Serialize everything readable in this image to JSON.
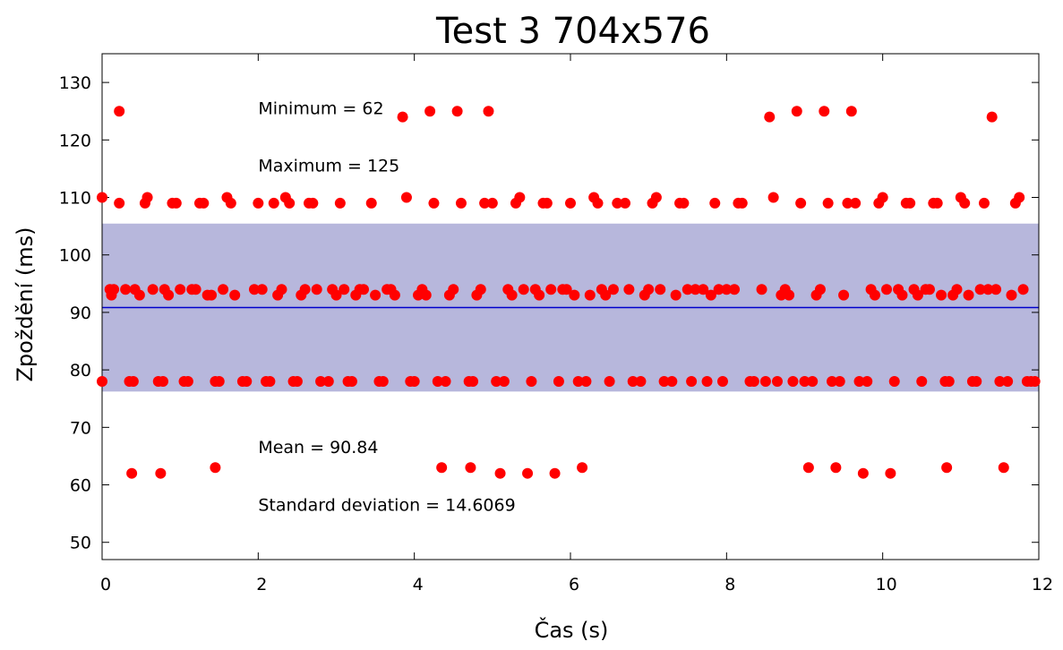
{
  "chart_data": {
    "type": "scatter",
    "title": "Test 3 704x576",
    "xlabel": "Čas (s)",
    "ylabel": "Zpoždění (ms)",
    "xlim": [
      0,
      12
    ],
    "ylim": [
      47,
      135
    ],
    "xticks": [
      0,
      2,
      4,
      6,
      8,
      10,
      12
    ],
    "yticks": [
      50,
      60,
      70,
      80,
      90,
      100,
      110,
      120,
      130
    ],
    "grid": false,
    "colors": {
      "points": "#ff0000",
      "mean_line": "#0000cc",
      "std_band": "#b7b7dc"
    },
    "mean": 90.84,
    "std": 14.6069,
    "annotations": [
      {
        "text": "Minimum = 62",
        "x": 2.0,
        "y": 124.5
      },
      {
        "text": "Maximum = 125",
        "x": 2.0,
        "y": 114.5
      },
      {
        "text": "Mean = 90.84",
        "x": 2.0,
        "y": 65.5
      },
      {
        "text": "Standard deviation = 14.6069",
        "x": 2.0,
        "y": 55.5
      }
    ],
    "series": [
      {
        "points": [
          [
            0.0,
            110
          ],
          [
            0.0,
            78
          ],
          [
            0.1,
            94
          ],
          [
            0.12,
            93
          ],
          [
            0.15,
            94
          ],
          [
            0.22,
            109
          ],
          [
            0.22,
            125
          ],
          [
            0.3,
            94
          ],
          [
            0.35,
            78
          ],
          [
            0.38,
            62
          ],
          [
            0.4,
            78
          ],
          [
            0.42,
            94
          ],
          [
            0.48,
            93
          ],
          [
            0.55,
            109
          ],
          [
            0.58,
            110
          ],
          [
            0.65,
            94
          ],
          [
            0.72,
            78
          ],
          [
            0.75,
            62
          ],
          [
            0.78,
            78
          ],
          [
            0.8,
            94
          ],
          [
            0.85,
            93
          ],
          [
            0.9,
            109
          ],
          [
            0.95,
            109
          ],
          [
            1.0,
            94
          ],
          [
            1.05,
            78
          ],
          [
            1.1,
            78
          ],
          [
            1.15,
            94
          ],
          [
            1.2,
            94
          ],
          [
            1.25,
            109
          ],
          [
            1.3,
            109
          ],
          [
            1.35,
            93
          ],
          [
            1.4,
            93
          ],
          [
            1.45,
            63
          ],
          [
            1.45,
            78
          ],
          [
            1.5,
            78
          ],
          [
            1.55,
            94
          ],
          [
            1.6,
            110
          ],
          [
            1.65,
            109
          ],
          [
            1.7,
            93
          ],
          [
            1.8,
            78
          ],
          [
            1.85,
            78
          ],
          [
            1.95,
            94
          ],
          [
            2.0,
            109
          ],
          [
            2.05,
            94
          ],
          [
            2.1,
            78
          ],
          [
            2.15,
            78
          ],
          [
            2.2,
            109
          ],
          [
            2.25,
            93
          ],
          [
            2.3,
            94
          ],
          [
            2.35,
            110
          ],
          [
            2.4,
            109
          ],
          [
            2.45,
            78
          ],
          [
            2.5,
            78
          ],
          [
            2.55,
            93
          ],
          [
            2.6,
            94
          ],
          [
            2.65,
            109
          ],
          [
            2.7,
            109
          ],
          [
            2.75,
            94
          ],
          [
            2.8,
            78
          ],
          [
            2.9,
            78
          ],
          [
            2.95,
            94
          ],
          [
            3.0,
            93
          ],
          [
            3.05,
            109
          ],
          [
            3.1,
            94
          ],
          [
            3.15,
            78
          ],
          [
            3.2,
            78
          ],
          [
            3.25,
            93
          ],
          [
            3.3,
            94
          ],
          [
            3.35,
            94
          ],
          [
            3.45,
            109
          ],
          [
            3.5,
            93
          ],
          [
            3.55,
            78
          ],
          [
            3.6,
            78
          ],
          [
            3.65,
            94
          ],
          [
            3.7,
            94
          ],
          [
            3.75,
            93
          ],
          [
            3.85,
            124
          ],
          [
            3.9,
            110
          ],
          [
            3.95,
            78
          ],
          [
            4.0,
            78
          ],
          [
            4.05,
            93
          ],
          [
            4.1,
            94
          ],
          [
            4.15,
            93
          ],
          [
            4.2,
            125
          ],
          [
            4.25,
            109
          ],
          [
            4.3,
            78
          ],
          [
            4.35,
            63
          ],
          [
            4.4,
            78
          ],
          [
            4.45,
            93
          ],
          [
            4.5,
            94
          ],
          [
            4.55,
            125
          ],
          [
            4.6,
            109
          ],
          [
            4.7,
            78
          ],
          [
            4.72,
            63
          ],
          [
            4.75,
            78
          ],
          [
            4.8,
            93
          ],
          [
            4.85,
            94
          ],
          [
            4.9,
            109
          ],
          [
            4.95,
            125
          ],
          [
            5.0,
            109
          ],
          [
            5.05,
            78
          ],
          [
            5.1,
            62
          ],
          [
            5.15,
            78
          ],
          [
            5.2,
            94
          ],
          [
            5.25,
            93
          ],
          [
            5.3,
            109
          ],
          [
            5.35,
            110
          ],
          [
            5.4,
            94
          ],
          [
            5.45,
            62
          ],
          [
            5.5,
            78
          ],
          [
            5.55,
            94
          ],
          [
            5.6,
            93
          ],
          [
            5.65,
            109
          ],
          [
            5.7,
            109
          ],
          [
            5.75,
            94
          ],
          [
            5.8,
            62
          ],
          [
            5.85,
            78
          ],
          [
            5.9,
            94
          ],
          [
            5.95,
            94
          ],
          [
            6.0,
            109
          ],
          [
            6.05,
            93
          ],
          [
            6.1,
            78
          ],
          [
            6.15,
            63
          ],
          [
            6.2,
            78
          ],
          [
            6.25,
            93
          ],
          [
            6.3,
            110
          ],
          [
            6.35,
            109
          ],
          [
            6.4,
            94
          ],
          [
            6.45,
            93
          ],
          [
            6.5,
            78
          ],
          [
            6.55,
            94
          ],
          [
            6.6,
            109
          ],
          [
            6.7,
            109
          ],
          [
            6.75,
            94
          ],
          [
            6.8,
            78
          ],
          [
            6.9,
            78
          ],
          [
            6.95,
            93
          ],
          [
            7.0,
            94
          ],
          [
            7.05,
            109
          ],
          [
            7.1,
            110
          ],
          [
            7.15,
            94
          ],
          [
            7.2,
            78
          ],
          [
            7.3,
            78
          ],
          [
            7.35,
            93
          ],
          [
            7.4,
            109
          ],
          [
            7.45,
            109
          ],
          [
            7.5,
            94
          ],
          [
            7.55,
            78
          ],
          [
            7.6,
            94
          ],
          [
            7.7,
            94
          ],
          [
            7.75,
            78
          ],
          [
            7.8,
            93
          ],
          [
            7.85,
            109
          ],
          [
            7.9,
            94
          ],
          [
            7.95,
            78
          ],
          [
            8.0,
            94
          ],
          [
            8.1,
            94
          ],
          [
            8.15,
            109
          ],
          [
            8.2,
            109
          ],
          [
            8.3,
            78
          ],
          [
            8.35,
            78
          ],
          [
            8.45,
            94
          ],
          [
            8.5,
            78
          ],
          [
            8.55,
            124
          ],
          [
            8.6,
            110
          ],
          [
            8.65,
            78
          ],
          [
            8.7,
            93
          ],
          [
            8.75,
            94
          ],
          [
            8.8,
            93
          ],
          [
            8.85,
            78
          ],
          [
            8.9,
            125
          ],
          [
            8.95,
            109
          ],
          [
            9.0,
            78
          ],
          [
            9.05,
            63
          ],
          [
            9.1,
            78
          ],
          [
            9.15,
            93
          ],
          [
            9.2,
            94
          ],
          [
            9.25,
            125
          ],
          [
            9.3,
            109
          ],
          [
            9.35,
            78
          ],
          [
            9.4,
            63
          ],
          [
            9.45,
            78
          ],
          [
            9.5,
            93
          ],
          [
            9.55,
            109
          ],
          [
            9.6,
            125
          ],
          [
            9.65,
            109
          ],
          [
            9.7,
            78
          ],
          [
            9.75,
            62
          ],
          [
            9.8,
            78
          ],
          [
            9.85,
            94
          ],
          [
            9.9,
            93
          ],
          [
            9.95,
            109
          ],
          [
            10.0,
            110
          ],
          [
            10.05,
            94
          ],
          [
            10.1,
            62
          ],
          [
            10.15,
            78
          ],
          [
            10.2,
            94
          ],
          [
            10.25,
            93
          ],
          [
            10.3,
            109
          ],
          [
            10.35,
            109
          ],
          [
            10.4,
            94
          ],
          [
            10.45,
            93
          ],
          [
            10.5,
            78
          ],
          [
            10.55,
            94
          ],
          [
            10.6,
            94
          ],
          [
            10.65,
            109
          ],
          [
            10.7,
            109
          ],
          [
            10.75,
            93
          ],
          [
            10.8,
            78
          ],
          [
            10.82,
            63
          ],
          [
            10.85,
            78
          ],
          [
            10.9,
            93
          ],
          [
            10.95,
            94
          ],
          [
            11.0,
            110
          ],
          [
            11.05,
            109
          ],
          [
            11.1,
            93
          ],
          [
            11.15,
            78
          ],
          [
            11.2,
            78
          ],
          [
            11.25,
            94
          ],
          [
            11.3,
            109
          ],
          [
            11.35,
            94
          ],
          [
            11.4,
            124
          ],
          [
            11.45,
            94
          ],
          [
            11.5,
            78
          ],
          [
            11.55,
            63
          ],
          [
            11.6,
            78
          ],
          [
            11.65,
            93
          ],
          [
            11.7,
            109
          ],
          [
            11.75,
            110
          ],
          [
            11.8,
            94
          ],
          [
            11.85,
            78
          ],
          [
            11.9,
            78
          ],
          [
            11.95,
            78
          ]
        ]
      }
    ]
  }
}
